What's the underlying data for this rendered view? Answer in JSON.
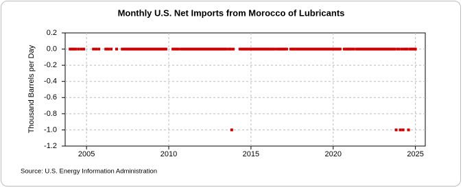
{
  "chart_data": {
    "type": "scatter",
    "title": "Monthly U.S. Net Imports from Morocco of Lubricants",
    "y_label": "Thousand Barrels per Day",
    "source": "Source: U.S. Energy Information Administration",
    "color": "#cc0000",
    "grid": true,
    "xlim": [
      2003.7,
      2025.6
    ],
    "xticks": [
      2005,
      2010,
      2015,
      2020,
      2025
    ],
    "ylim": [
      -1.2,
      0.2
    ],
    "yticks": [
      0.2,
      {
        "value": 0,
        "label": "0.0"
      },
      -0.2,
      -0.4,
      -0.6,
      -0.8,
      {
        "value": -1,
        "label": "-1.0"
      },
      -1.2
    ],
    "x": [
      2004,
      2004.08,
      2004.17,
      2004.25,
      2004.33,
      2004.5,
      2004.67,
      2004.83,
      2005.42,
      2005.58,
      2005.75,
      2006.17,
      2006.25,
      2006.33,
      2006.5,
      2006.83,
      2007.17,
      2007.25,
      2007.33,
      2007.42,
      2007.5,
      2007.58,
      2007.67,
      2007.75,
      2007.83,
      2007.92,
      2008,
      2008.08,
      2008.17,
      2008.25,
      2008.33,
      2008.42,
      2008.5,
      2008.58,
      2008.67,
      2008.75,
      2008.83,
      2008.92,
      2009,
      2009.08,
      2009.17,
      2009.25,
      2009.33,
      2009.42,
      2009.5,
      2009.58,
      2009.67,
      2009.75,
      2009.83,
      2010.25,
      2010.33,
      2010.42,
      2010.5,
      2010.58,
      2010.75,
      2010.83,
      2010.92,
      2011,
      2011.08,
      2011.17,
      2011.25,
      2011.33,
      2011.42,
      2011.5,
      2011.58,
      2011.67,
      2011.75,
      2011.83,
      2011.92,
      2012,
      2012.08,
      2012.17,
      2012.25,
      2012.33,
      2012.42,
      2012.5,
      2012.58,
      2012.67,
      2012.75,
      2012.83,
      2012.92,
      2013,
      2013.08,
      2013.17,
      2013.25,
      2013.33,
      2013.42,
      2013.5,
      2013.67,
      2013.75,
      2013.83,
      2013.92,
      2014.33,
      2014.42,
      2014.5,
      2014.58,
      2014.67,
      2014.75,
      2014.83,
      2014.92,
      2015,
      2015.08,
      2015.17,
      2015.25,
      2015.33,
      2015.42,
      2015.5,
      2015.58,
      2015.67,
      2015.75,
      2015.83,
      2015.92,
      2016,
      2016.08,
      2016.17,
      2016.25,
      2016.33,
      2016.42,
      2016.58,
      2016.67,
      2016.75,
      2016.83,
      2016.92,
      2017,
      2017.08,
      2017.17,
      2017.42,
      2017.5,
      2017.58,
      2017.67,
      2017.75,
      2017.83,
      2017.92,
      2018,
      2018.08,
      2018.17,
      2018.25,
      2018.33,
      2018.42,
      2018.5,
      2018.58,
      2018.67,
      2018.75,
      2018.83,
      2018.92,
      2019,
      2019.08,
      2019.17,
      2019.25,
      2019.33,
      2019.42,
      2019.5,
      2019.58,
      2019.67,
      2019.75,
      2019.83,
      2019.92,
      2020,
      2020.08,
      2020.17,
      2020.25,
      2020.33,
      2020.42,
      2020.67,
      2020.75,
      2020.83,
      2020.92,
      2021,
      2021.08,
      2021.17,
      2021.25,
      2021.42,
      2021.5,
      2021.58,
      2021.67,
      2021.75,
      2021.83,
      2021.92,
      2022,
      2022.08,
      2022.17,
      2022.25,
      2022.33,
      2022.42,
      2022.5,
      2022.58,
      2022.67,
      2022.75,
      2022.83,
      2022.92,
      2023,
      2023.08,
      2023.17,
      2023.25,
      2023.33,
      2023.42,
      2023.5,
      2023.58,
      2023.67,
      2023.75,
      2023.83,
      2023.92,
      2024,
      2024.08,
      2024.17,
      2024.25,
      2024.33,
      2024.42,
      2024.5,
      2024.58,
      2024.67,
      2024.75,
      2024.83,
      2024.92,
      2025
    ],
    "values": [
      0,
      0,
      0,
      0,
      0,
      0,
      0,
      0,
      0,
      0,
      0,
      0,
      0,
      0,
      0,
      0,
      0,
      0,
      0,
      0,
      0,
      0,
      0,
      0,
      0,
      0,
      0,
      0,
      0,
      0,
      0,
      0,
      0,
      0,
      0,
      0,
      0,
      0,
      0,
      0,
      0,
      0,
      0,
      0,
      0,
      0,
      0,
      0,
      0,
      0,
      0,
      0,
      0,
      0,
      0,
      0,
      0,
      0,
      0,
      0,
      0,
      0,
      0,
      0,
      0,
      0,
      0,
      0,
      0,
      0,
      0,
      0,
      0,
      0,
      0,
      0,
      0,
      0,
      0,
      0,
      0,
      0,
      0,
      0,
      0,
      0,
      0,
      0,
      0,
      0,
      -1,
      0,
      0,
      0,
      0,
      0,
      0,
      0,
      0,
      0,
      0,
      0,
      0,
      0,
      0,
      0,
      0,
      0,
      0,
      0,
      0,
      0,
      0,
      0,
      0,
      0,
      0,
      0,
      0,
      0,
      0,
      0,
      0,
      0,
      0,
      0,
      0,
      0,
      0,
      0,
      0,
      0,
      0,
      0,
      0,
      0,
      0,
      0,
      0,
      0,
      0,
      0,
      0,
      0,
      0,
      0,
      0,
      0,
      0,
      0,
      0,
      0,
      0,
      0,
      0,
      0,
      0,
      0,
      0,
      0,
      0,
      0,
      0,
      0,
      0,
      0,
      0,
      0,
      0,
      0,
      0,
      0,
      0,
      0,
      0,
      0,
      0,
      0,
      0,
      0,
      0,
      0,
      0,
      0,
      0,
      0,
      0,
      0,
      0,
      0,
      0,
      0,
      0,
      0,
      0,
      0,
      0,
      0,
      0,
      0,
      -1,
      0,
      0,
      -1,
      0,
      -1,
      0,
      0,
      0,
      -1,
      0,
      0,
      0,
      0,
      0
    ]
  }
}
